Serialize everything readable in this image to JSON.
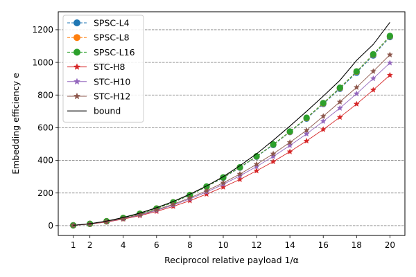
{
  "chart_data": {
    "type": "line",
    "xlabel": "Reciprocol relative payload 1/α",
    "ylabel": "Embedding efficiency e",
    "xlim": [
      0.1,
      20.9
    ],
    "ylim": [
      -60,
      1310
    ],
    "xticks": [
      1,
      2,
      4,
      6,
      8,
      10,
      12,
      14,
      16,
      18,
      20
    ],
    "yticks": [
      0,
      200,
      400,
      600,
      800,
      1000,
      1200
    ],
    "grid": "y-dashed",
    "legend_position": "top-left",
    "x": [
      1,
      2,
      3,
      4,
      5,
      6,
      7,
      8,
      9,
      10,
      11,
      12,
      13,
      14,
      15,
      16,
      17,
      18,
      19,
      20
    ],
    "series": [
      {
        "name": "SPSC-L4",
        "color": "#1f77b4",
        "marker": "circle",
        "linestyle": "dashed",
        "values": [
          2,
          11,
          27,
          47,
          72,
          104,
          142,
          187,
          238,
          293,
          355,
          422,
          494,
          573,
          655,
          745,
          838,
          937,
          1042,
          1155
        ]
      },
      {
        "name": "SPSC-L8",
        "color": "#ff7f0e",
        "marker": "circle",
        "linestyle": "dashed",
        "values": [
          2,
          11,
          27,
          47,
          73,
          105,
          143,
          188,
          239,
          295,
          357,
          424,
          497,
          575,
          659,
          749,
          843,
          943,
          1048,
          1160
        ]
      },
      {
        "name": "SPSC-L16",
        "color": "#2ca02c",
        "marker": "circle",
        "linestyle": "dashed",
        "values": [
          2,
          11,
          27,
          47,
          73,
          105,
          143,
          188,
          240,
          296,
          358,
          425,
          498,
          577,
          661,
          751,
          845,
          945,
          1050,
          1162
        ]
      },
      {
        "name": "STC-H8",
        "color": "#d62728",
        "marker": "star",
        "linestyle": "solid",
        "values": [
          2,
          9,
          22,
          40,
          61,
          87,
          118,
          153,
          193,
          236,
          283,
          336,
          392,
          453,
          519,
          589,
          664,
          745,
          831,
          922
        ]
      },
      {
        "name": "STC-H10",
        "color": "#9467bd",
        "marker": "star",
        "linestyle": "solid",
        "values": [
          2,
          10,
          24,
          42,
          65,
          93,
          126,
          164,
          206,
          253,
          305,
          362,
          424,
          491,
          562,
          639,
          720,
          808,
          901,
          997
        ]
      },
      {
        "name": "STC-H12",
        "color": "#8c564b",
        "marker": "star",
        "linestyle": "solid",
        "values": [
          2,
          10,
          25,
          44,
          68,
          97,
          131,
          170,
          214,
          262,
          316,
          376,
          440,
          510,
          584,
          670,
          758,
          847,
          945,
          1047
        ]
      },
      {
        "name": "bound",
        "color": "#000000",
        "marker": "none",
        "linestyle": "solid",
        "values": [
          2,
          12,
          28,
          50,
          77,
          110,
          148,
          193,
          243,
          300,
          367,
          440,
          523,
          610,
          700,
          793,
          890,
          1012,
          1110,
          1245
        ]
      }
    ]
  }
}
